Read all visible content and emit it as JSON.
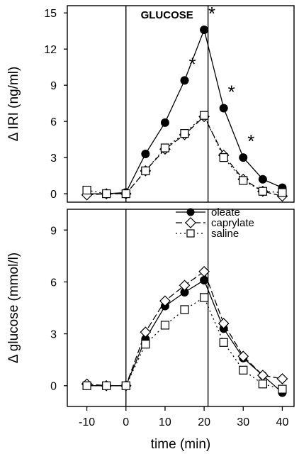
{
  "chart_data": [
    {
      "type": "line",
      "ylabel": "Δ IRI (ng/ml)",
      "xlim": [
        -15,
        43
      ],
      "ylim": [
        -0.7,
        15.6
      ],
      "yticks": [
        0,
        3,
        6,
        9,
        12,
        15
      ],
      "annotation": "GLUCOSE",
      "stimulus_window": [
        0,
        21
      ],
      "series": [
        {
          "name": "oleate",
          "marker": "filled-circle",
          "line": "solid",
          "x": [
            -10,
            -5,
            0,
            5,
            10,
            15,
            20,
            25,
            30,
            35,
            40
          ],
          "y": [
            0.0,
            0.0,
            0.1,
            3.3,
            5.9,
            9.4,
            13.6,
            7.1,
            3.0,
            1.2,
            0.5
          ]
        },
        {
          "name": "caprylate",
          "marker": "open-diamond",
          "line": "dashed",
          "x": [
            -10,
            -5,
            0,
            5,
            10,
            15,
            20,
            25,
            30,
            35,
            40
          ],
          "y": [
            -0.1,
            0.0,
            0.0,
            1.9,
            3.7,
            4.9,
            6.4,
            3.2,
            1.2,
            0.2,
            -0.2
          ]
        },
        {
          "name": "saline",
          "marker": "open-square",
          "line": "dotted",
          "x": [
            -10,
            -5,
            0,
            5,
            10,
            15,
            20,
            25,
            30,
            35,
            40
          ],
          "y": [
            0.3,
            0.0,
            0.0,
            1.9,
            3.8,
            5.0,
            6.5,
            3.0,
            1.1,
            0.2,
            0.1
          ]
        }
      ],
      "significance": [
        {
          "x": 15,
          "mark": "*"
        },
        {
          "x": 20,
          "mark": "*"
        },
        {
          "x": 25,
          "mark": "*"
        },
        {
          "x": 30,
          "mark": "*"
        }
      ]
    },
    {
      "type": "line",
      "xlabel": "time (min)",
      "ylabel": "Δ glucose (mmol/l)",
      "xlim": [
        -15,
        43
      ],
      "ylim": [
        -1.2,
        10.2
      ],
      "xticks": [
        -10,
        0,
        10,
        20,
        30,
        40
      ],
      "yticks": [
        0,
        3,
        6,
        9
      ],
      "stimulus_window": [
        0,
        21
      ],
      "legend": {
        "placement": "top-right"
      },
      "series": [
        {
          "name": "oleate",
          "marker": "filled-circle",
          "line": "solid",
          "x": [
            -10,
            -5,
            0,
            5,
            10,
            15,
            20,
            25,
            30,
            35,
            40
          ],
          "y": [
            0.0,
            0.0,
            0.0,
            2.7,
            4.6,
            5.4,
            6.1,
            3.3,
            1.6,
            0.6,
            -0.4
          ]
        },
        {
          "name": "caprylate",
          "marker": "open-diamond",
          "line": "dashed",
          "x": [
            -10,
            -5,
            0,
            5,
            10,
            15,
            20,
            25,
            30,
            35,
            40
          ],
          "y": [
            0.1,
            0.0,
            0.0,
            3.1,
            4.9,
            5.8,
            6.6,
            3.6,
            1.7,
            0.6,
            0.4
          ]
        },
        {
          "name": "saline",
          "marker": "open-square",
          "line": "dotted",
          "x": [
            -10,
            -5,
            0,
            5,
            10,
            15,
            20,
            25,
            30,
            35,
            40
          ],
          "y": [
            0.0,
            0.0,
            0.0,
            2.4,
            3.5,
            4.4,
            5.1,
            2.5,
            0.9,
            0.1,
            -0.2
          ]
        }
      ]
    }
  ]
}
